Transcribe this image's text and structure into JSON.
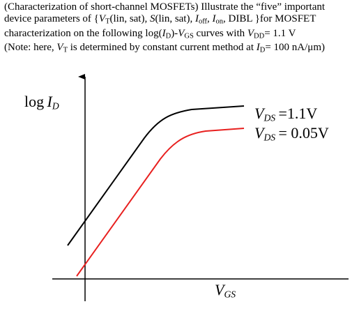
{
  "problem": {
    "line1": [
      "(Characterization of short-channel MOSFETs) Illustrate the “five” important"
    ],
    "line2": [
      "device parameters of {",
      "V",
      "T",
      "(lin, sat), ",
      "S",
      "(lin, sat), ",
      "I",
      "off",
      ", ",
      "I",
      "on",
      ", DIBL }for MOSFET"
    ],
    "line3": [
      "characterization on the following log(",
      "I",
      "D",
      ")-",
      "V",
      "GS",
      " curves with ",
      "V",
      "DD",
      "= 1.1 V"
    ],
    "line4": [
      "(Note: here, ",
      "V",
      "T",
      " is determined by constant current method at ",
      "I",
      "D",
      "= 100 nA/μm)"
    ]
  },
  "figure": {
    "y_label": [
      "log",
      "I",
      "D"
    ],
    "x_label": [
      "V",
      "GS"
    ],
    "curve_labels": [
      [
        "V",
        "DS",
        "=1.1V"
      ],
      [
        "V",
        "DS",
        "= 0.05V"
      ]
    ]
  }
}
